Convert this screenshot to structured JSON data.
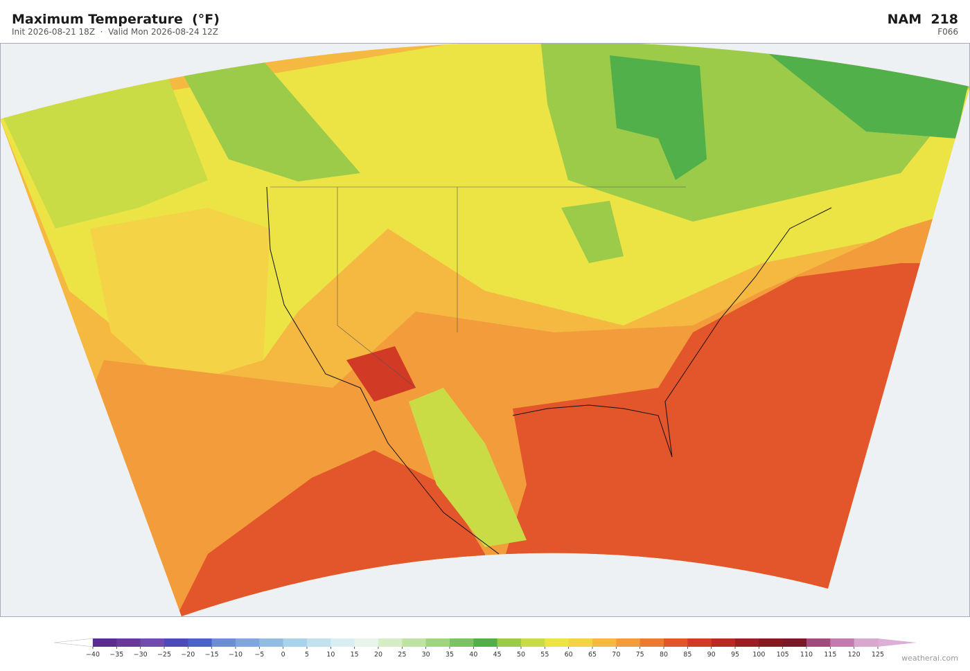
{
  "header": {
    "title": "Maximum Temperature  (°F)",
    "subtitle": "Init 2026-08-21 18Z  ·  Valid Mon 2026-08-24 12Z",
    "model": "NAM  218",
    "forecast_hour": "F066"
  },
  "colorbar": {
    "ticks": [
      {
        "value": -40,
        "label": "−40"
      },
      {
        "value": -35,
        "label": "−35"
      },
      {
        "value": -30,
        "label": "−30"
      },
      {
        "value": -25,
        "label": "−25"
      },
      {
        "value": -20,
        "label": "−20"
      },
      {
        "value": -15,
        "label": "−15"
      },
      {
        "value": -10,
        "label": "−10"
      },
      {
        "value": -5,
        "label": "−5"
      },
      0,
      5,
      10,
      15,
      20,
      25,
      30,
      35,
      40,
      45,
      50,
      55,
      60,
      65,
      70,
      75,
      80,
      85,
      90,
      95,
      100,
      105,
      110,
      115,
      120,
      125
    ],
    "colors": [
      "#5b2d8e",
      "#6a3a9a",
      "#6f4cad",
      "#4d4bb8",
      "#4a62c8",
      "#6d8ed3",
      "#7fa7dd",
      "#91bde3",
      "#a9d3ea",
      "#c2e1ee",
      "#d9eef3",
      "#e6f4ea",
      "#d7edc8",
      "#bfe3a2",
      "#9fd57e",
      "#7cc463",
      "#52b04a",
      "#9ccb4a",
      "#c9dc45",
      "#ece444",
      "#f5d347",
      "#f5b942",
      "#f29c3b",
      "#ec7a31",
      "#e3552a",
      "#d13a24",
      "#b82a22",
      "#9b1f22",
      "#851a1f",
      "#7a1a28",
      "#a04d7e",
      "#c27bae",
      "#d9a8cf"
    ],
    "under_color": "#ffffff",
    "over_color": "#dcb0d6"
  },
  "watermark": "weatherai.com"
}
